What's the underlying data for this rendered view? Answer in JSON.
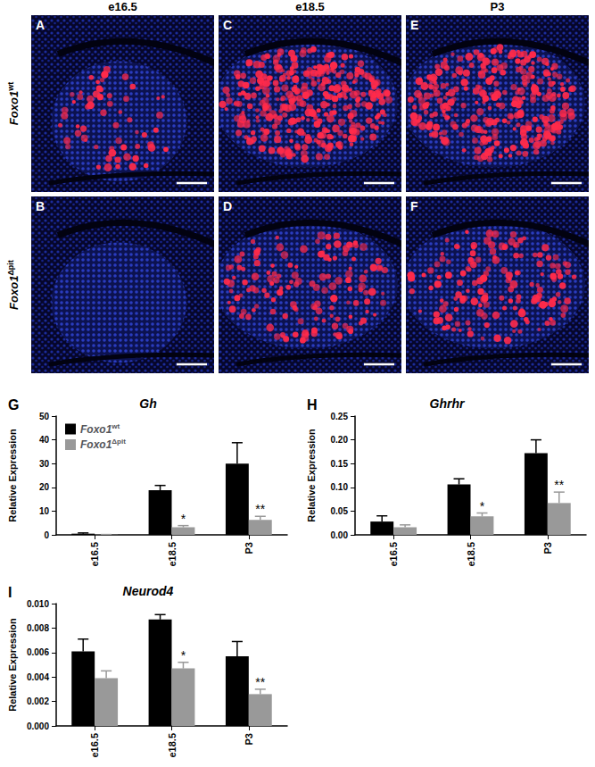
{
  "figure": {
    "columns": [
      "e16.5",
      "e18.5",
      "P3"
    ],
    "rows": [
      "Foxo1wt",
      "Foxo1Δpit"
    ],
    "panels": [
      [
        "A",
        "C",
        "E"
      ],
      [
        "B",
        "D",
        "F"
      ]
    ]
  },
  "chart_data": [
    {
      "type": "bar",
      "panel": "G",
      "title": "Gh",
      "y_label": "Relative Expression",
      "categories": [
        "e16.5",
        "e18.5",
        "P3"
      ],
      "series": [
        {
          "name": "Foxo1wt",
          "color": "#000000",
          "values": [
            0.5,
            18.8,
            30.0
          ],
          "errors": [
            0.3,
            2.0,
            8.8
          ]
        },
        {
          "name": "Foxo1Δpit",
          "color": "#999999",
          "values": [
            0.1,
            3.2,
            6.3
          ],
          "errors": [
            0.05,
            0.7,
            1.5
          ],
          "significance": [
            null,
            "*",
            "**"
          ]
        }
      ],
      "ylim": [
        0,
        50
      ],
      "yticks": [
        0,
        10,
        20,
        30,
        40,
        50
      ],
      "grid": false,
      "legend": "top-left"
    },
    {
      "type": "bar",
      "panel": "H",
      "title": "Ghrhr",
      "y_label": "Relative Expression",
      "categories": [
        "e16.5",
        "e18.5",
        "P3"
      ],
      "series": [
        {
          "color": "#000000",
          "values": [
            0.028,
            0.106,
            0.172
          ],
          "errors": [
            0.012,
            0.012,
            0.028
          ]
        },
        {
          "color": "#999999",
          "values": [
            0.016,
            0.039,
            0.067
          ],
          "errors": [
            0.005,
            0.007,
            0.023
          ],
          "significance": [
            null,
            "*",
            "**"
          ]
        }
      ],
      "ylim": [
        0,
        0.25
      ],
      "yticks": [
        {
          "value": 0,
          "label": "0.00"
        },
        {
          "value": 0.05,
          "label": "0.05"
        },
        {
          "value": 0.1,
          "label": "0.10"
        },
        {
          "value": 0.15,
          "label": "0.15"
        },
        {
          "value": 0.2,
          "label": "0.20"
        },
        {
          "value": 0.25,
          "label": "0.25"
        }
      ],
      "grid": false
    },
    {
      "type": "bar",
      "panel": "I",
      "title": "Neurod4",
      "y_label": "Relative Expression",
      "categories": [
        "e16.5",
        "e18.5",
        "P3"
      ],
      "series": [
        {
          "color": "#000000",
          "values": [
            0.0061,
            0.0087,
            0.0057
          ],
          "errors": [
            0.001,
            0.0004,
            0.0012
          ]
        },
        {
          "color": "#999999",
          "values": [
            0.0039,
            0.0047,
            0.0026
          ],
          "errors": [
            0.0006,
            0.0005,
            0.0004
          ],
          "significance": [
            null,
            "*",
            "**"
          ]
        }
      ],
      "ylim": [
        0,
        0.01
      ],
      "yticks": [
        {
          "value": 0,
          "label": "0.000"
        },
        {
          "value": 0.002,
          "label": "0.002"
        },
        {
          "value": 0.004,
          "label": "0.004"
        },
        {
          "value": 0.006,
          "label": "0.006"
        },
        {
          "value": 0.008,
          "label": "0.008"
        },
        {
          "value": 0.01,
          "label": "0.010"
        }
      ],
      "grid": false
    }
  ]
}
